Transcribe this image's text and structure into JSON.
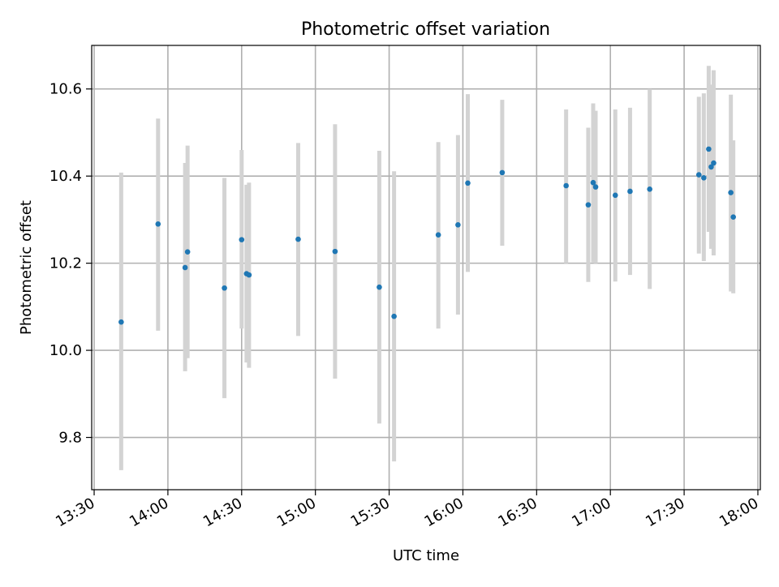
{
  "chart_data": {
    "type": "scatter",
    "title": "Photometric offset variation",
    "xlabel": "UTC time",
    "ylabel": "Photometric offset",
    "x_ticks": [
      "13:30",
      "14:00",
      "14:30",
      "15:00",
      "15:30",
      "16:00",
      "16:30",
      "17:00",
      "17:30",
      "18:00"
    ],
    "y_ticks": [
      "9.8",
      "10.0",
      "10.2",
      "10.4",
      "10.6"
    ],
    "xlim": [
      "13:29",
      "18:01"
    ],
    "ylim": [
      9.68,
      10.7
    ],
    "grid": true,
    "colors": {
      "points": "#1f77b4",
      "errorbars": "#d3d3d3",
      "grid": "#b0b0b0"
    },
    "points": [
      {
        "t": "13:41",
        "y": 10.065,
        "lo": 9.725,
        "hi": 10.408
      },
      {
        "t": "13:56",
        "y": 10.29,
        "lo": 10.045,
        "hi": 10.532
      },
      {
        "t": "14:07",
        "y": 10.19,
        "lo": 9.952,
        "hi": 10.43
      },
      {
        "t": "14:08",
        "y": 10.226,
        "lo": 9.982,
        "hi": 10.47
      },
      {
        "t": "14:23",
        "y": 10.143,
        "lo": 9.89,
        "hi": 10.396
      },
      {
        "t": "14:30",
        "y": 10.254,
        "lo": 10.05,
        "hi": 10.46
      },
      {
        "t": "14:32",
        "y": 10.176,
        "lo": 9.972,
        "hi": 10.38
      },
      {
        "t": "14:33",
        "y": 10.173,
        "lo": 9.96,
        "hi": 10.385
      },
      {
        "t": "14:53",
        "y": 10.255,
        "lo": 10.033,
        "hi": 10.476
      },
      {
        "t": "15:08",
        "y": 10.227,
        "lo": 9.935,
        "hi": 10.519
      },
      {
        "t": "15:26",
        "y": 10.145,
        "lo": 9.832,
        "hi": 10.458
      },
      {
        "t": "15:32",
        "y": 10.078,
        "lo": 9.745,
        "hi": 10.411
      },
      {
        "t": "15:50",
        "y": 10.265,
        "lo": 10.05,
        "hi": 10.478
      },
      {
        "t": "15:58",
        "y": 10.288,
        "lo": 10.082,
        "hi": 10.494
      },
      {
        "t": "16:02",
        "y": 10.384,
        "lo": 10.18,
        "hi": 10.588
      },
      {
        "t": "16:16",
        "y": 10.408,
        "lo": 10.24,
        "hi": 10.575
      },
      {
        "t": "16:42",
        "y": 10.378,
        "lo": 10.2,
        "hi": 10.553
      },
      {
        "t": "16:51",
        "y": 10.334,
        "lo": 10.157,
        "hi": 10.511
      },
      {
        "t": "16:53",
        "y": 10.385,
        "lo": 10.202,
        "hi": 10.567
      },
      {
        "t": "16:54",
        "y": 10.375,
        "lo": 10.2,
        "hi": 10.55
      },
      {
        "t": "17:02",
        "y": 10.356,
        "lo": 10.158,
        "hi": 10.553
      },
      {
        "t": "17:08",
        "y": 10.365,
        "lo": 10.173,
        "hi": 10.557
      },
      {
        "t": "17:16",
        "y": 10.37,
        "lo": 10.141,
        "hi": 10.6
      },
      {
        "t": "17:36",
        "y": 10.403,
        "lo": 10.222,
        "hi": 10.582
      },
      {
        "t": "17:38",
        "y": 10.396,
        "lo": 10.205,
        "hi": 10.59
      },
      {
        "t": "17:40",
        "y": 10.462,
        "lo": 10.272,
        "hi": 10.653
      },
      {
        "t": "17:41",
        "y": 10.421,
        "lo": 10.233,
        "hi": 10.61
      },
      {
        "t": "17:42",
        "y": 10.43,
        "lo": 10.218,
        "hi": 10.643
      },
      {
        "t": "17:49",
        "y": 10.362,
        "lo": 10.135,
        "hi": 10.587
      },
      {
        "t": "17:50",
        "y": 10.306,
        "lo": 10.131,
        "hi": 10.482
      }
    ]
  }
}
